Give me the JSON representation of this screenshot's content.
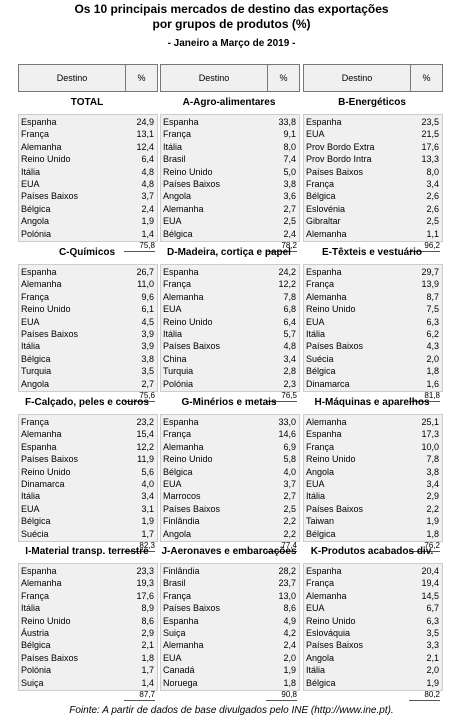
{
  "header": {
    "title": "Os 10 principais mercados de destino das exportações",
    "subtitle": "por grupos de produtos (%)",
    "period": "- Janeiro a Março de 2019 -"
  },
  "column_header": [
    "Destino",
    "%"
  ],
  "groups": [
    {
      "title": "TOTAL",
      "rows": [
        [
          "Espanha",
          "24,9"
        ],
        [
          "França",
          "13,1"
        ],
        [
          "Alemanha",
          "12,4"
        ],
        [
          "Reino Unido",
          "6,4"
        ],
        [
          "Itália",
          "4,8"
        ],
        [
          "EUA",
          "4,8"
        ],
        [
          "Países Baixos",
          "3,7"
        ],
        [
          "Bélgica",
          "2,4"
        ],
        [
          "Angola",
          "1,9"
        ],
        [
          "Polónia",
          "1,4"
        ]
      ],
      "total": "75,8"
    },
    {
      "title": "A-Agro-alimentares",
      "rows": [
        [
          "Espanha",
          "33,8"
        ],
        [
          "França",
          "9,1"
        ],
        [
          "Itália",
          "8,0"
        ],
        [
          "Brasil",
          "7,4"
        ],
        [
          "Reino Unido",
          "5,0"
        ],
        [
          "Países Baixos",
          "3,8"
        ],
        [
          "Angola",
          "3,6"
        ],
        [
          "Alemanha",
          "2,7"
        ],
        [
          "EUA",
          "2,5"
        ],
        [
          "Bélgica",
          "2,4"
        ]
      ],
      "total": "78,2"
    },
    {
      "title": "B-Energéticos",
      "rows": [
        [
          "Espanha",
          "23,5"
        ],
        [
          "EUA",
          "21,5"
        ],
        [
          "Prov Bordo Extra",
          "17,6"
        ],
        [
          "Prov Bordo Intra",
          "13,3"
        ],
        [
          "Países Baixos",
          "8,0"
        ],
        [
          "França",
          "3,4"
        ],
        [
          "Bélgica",
          "2,6"
        ],
        [
          "Eslovénia",
          "2,6"
        ],
        [
          "Gibraltar",
          "2,5"
        ],
        [
          "Alemanha",
          "1,1"
        ]
      ],
      "total": "96,2"
    },
    {
      "title": "C-Químicos",
      "rows": [
        [
          "Espanha",
          "26,7"
        ],
        [
          "Alemanha",
          "11,0"
        ],
        [
          "França",
          "9,6"
        ],
        [
          "Reino Unido",
          "6,1"
        ],
        [
          "EUA",
          "4,5"
        ],
        [
          "Países Baixos",
          "3,9"
        ],
        [
          "Itália",
          "3,9"
        ],
        [
          "Bélgica",
          "3,8"
        ],
        [
          "Turquia",
          "3,5"
        ],
        [
          "Angola",
          "2,7"
        ]
      ],
      "total": "75,6"
    },
    {
      "title": "D-Madeira, cortiça e papel",
      "rows": [
        [
          "Espanha",
          "24,2"
        ],
        [
          "França",
          "12,2"
        ],
        [
          "Alemanha",
          "7,8"
        ],
        [
          "EUA",
          "6,8"
        ],
        [
          "Reino Unido",
          "6,4"
        ],
        [
          "Itália",
          "5,7"
        ],
        [
          "Países Baixos",
          "4,8"
        ],
        [
          "China",
          "3,4"
        ],
        [
          "Turquia",
          "2,8"
        ],
        [
          "Polónia",
          "2,3"
        ]
      ],
      "total": "76,5"
    },
    {
      "title": "E-Têxteis e vestuário",
      "rows": [
        [
          "Espanha",
          "29,7"
        ],
        [
          "França",
          "13,9"
        ],
        [
          "Alemanha",
          "8,7"
        ],
        [
          "Reino Unido",
          "7,5"
        ],
        [
          "EUA",
          "6,3"
        ],
        [
          "Itália",
          "6,2"
        ],
        [
          "Países Baixos",
          "4,3"
        ],
        [
          "Suécia",
          "2,0"
        ],
        [
          "Bélgica",
          "1,8"
        ],
        [
          "Dinamarca",
          "1,6"
        ]
      ],
      "total": "81,8"
    },
    {
      "title": "F-Calçado, peles e couros",
      "rows": [
        [
          "França",
          "23,2"
        ],
        [
          "Alemanha",
          "15,4"
        ],
        [
          "Espanha",
          "12,2"
        ],
        [
          "Países Baixos",
          "11,9"
        ],
        [
          "Reino Unido",
          "5,6"
        ],
        [
          "Dinamarca",
          "4,0"
        ],
        [
          "Itália",
          "3,4"
        ],
        [
          "EUA",
          "3,1"
        ],
        [
          "Bélgica",
          "1,9"
        ],
        [
          "Suécia",
          "1,7"
        ]
      ],
      "total": "82,3"
    },
    {
      "title": "G-Minérios e metais",
      "rows": [
        [
          "Espanha",
          "33,0"
        ],
        [
          "França",
          "14,6"
        ],
        [
          "Alemanha",
          "6,9"
        ],
        [
          "Reino Unido",
          "5,8"
        ],
        [
          "Bélgica",
          "4,0"
        ],
        [
          "EUA",
          "3,7"
        ],
        [
          "Marrocos",
          "2,7"
        ],
        [
          "Países Baixos",
          "2,5"
        ],
        [
          "Finlândia",
          "2,2"
        ],
        [
          "Angola",
          "2,2"
        ]
      ],
      "total": "77,4"
    },
    {
      "title": "H-Máquinas e aparelhos",
      "rows": [
        [
          "Alemanha",
          "25,1"
        ],
        [
          "Espanha",
          "17,3"
        ],
        [
          "França",
          "10,0"
        ],
        [
          "Reino Unido",
          "7,8"
        ],
        [
          "Angola",
          "3,8"
        ],
        [
          "EUA",
          "3,4"
        ],
        [
          "Itália",
          "2,9"
        ],
        [
          "Países Baixos",
          "2,2"
        ],
        [
          "Taiwan",
          "1,9"
        ],
        [
          "Bélgica",
          "1,8"
        ]
      ],
      "total": "76,2"
    },
    {
      "title": "I-Material transp. terrestre",
      "rows": [
        [
          "Espanha",
          "23,3"
        ],
        [
          "Alemanha",
          "19,3"
        ],
        [
          "França",
          "17,6"
        ],
        [
          "Itália",
          "8,9"
        ],
        [
          "Reino Unido",
          "8,6"
        ],
        [
          "Áustria",
          "2,9"
        ],
        [
          "Bélgica",
          "2,1"
        ],
        [
          "Países Baixos",
          "1,8"
        ],
        [
          "Polónia",
          "1,7"
        ],
        [
          "Suiça",
          "1,4"
        ]
      ],
      "total": "87,7"
    },
    {
      "title": "J-Aeronaves e embarcações",
      "rows": [
        [
          "Finlândia",
          "28,2"
        ],
        [
          "Brasil",
          "23,7"
        ],
        [
          "França",
          "13,0"
        ],
        [
          "Países Baixos",
          "8,6"
        ],
        [
          "Espanha",
          "4,9"
        ],
        [
          "Suiça",
          "4,2"
        ],
        [
          "Alemanha",
          "2,4"
        ],
        [
          "EUA",
          "2,0"
        ],
        [
          "Canadá",
          "1,9"
        ],
        [
          "Noruega",
          "1,8"
        ]
      ],
      "total": "90,8"
    },
    {
      "title": "K-Produtos acabados div.",
      "rows": [
        [
          "Espanha",
          "20,4"
        ],
        [
          "França",
          "19,4"
        ],
        [
          "Alemanha",
          "14,5"
        ],
        [
          "EUA",
          "6,7"
        ],
        [
          "Reino Unido",
          "6,3"
        ],
        [
          "Eslováquia",
          "3,5"
        ],
        [
          "Países Baixos",
          "3,3"
        ],
        [
          "Angola",
          "2,1"
        ],
        [
          "Itália",
          "2,0"
        ],
        [
          "Bélgica",
          "1,9"
        ]
      ],
      "total": "80,2"
    }
  ],
  "footer": "Fointe: A partir de dados de base divulgados pelo INE (http://www.ine.pt)."
}
